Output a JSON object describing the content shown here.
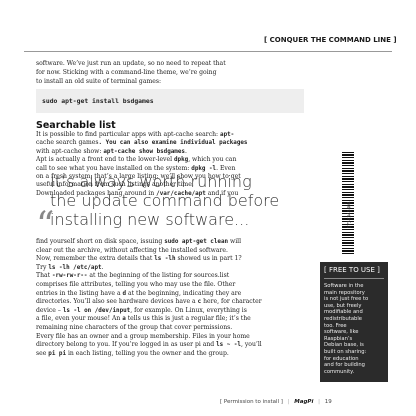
{
  "header": {
    "section": "[ CONQUER THE COMMAND LINE ]"
  },
  "intro": {
    "lines": [
      "software. We’ve just run an update, so no need to repeat that",
      "for now. Sticking with a command-line theme, we’re going",
      "to install an old suite of terminal games:"
    ]
  },
  "code": "sudo apt-get install bsdgames",
  "section": {
    "heading": "Searchable list",
    "lines": [
      [
        "It is possible to find particular apps with apt-cache search: ",
        "apt-"
      ],
      [
        "cache search games",
        ". You can also examine individual packages"
      ],
      [
        "with apt-cache show: ",
        "apt-cache show bsdgames",
        "."
      ],
      [
        "   Apt is actually a front end to the lower-level ",
        "dpkg",
        ", which you can"
      ],
      [
        "call to see what you have installed on the system: ",
        "dpkg -l",
        ". Even"
      ],
      [
        "on a fresh system, that’s a large listing: we’ll show you how to get"
      ],
      [
        "useful information from such listings another time."
      ],
      [
        "   Downloaded packages hang around in ",
        "/var/cache/apt",
        " and if you"
      ]
    ]
  },
  "pull_quote": {
    "lines": [
      "It’s always worth running",
      "the update command before",
      "installing new software..."
    ]
  },
  "body": {
    "lines": [
      [
        "find yourself short on disk space, issuing ",
        "sudo apt-get clean",
        " will"
      ],
      [
        "clear out the archive, without affecting the installed software."
      ],
      [
        "   Now, remember the extra details that ",
        "ls -lh",
        " showed us in part 1?"
      ],
      [
        "Try ",
        "ls -lh /etc/apt",
        "."
      ],
      [
        "   That ",
        "-rw-rw-r--",
        " at the beginning of the listing for sources.list"
      ],
      [
        "comprises file attributes, telling you who may use the file. Other"
      ],
      [
        "entries in the listing have a ",
        "d",
        " at the beginning, indicating they are"
      ],
      [
        "directories. You’ll also see hardware devices have a ",
        "c",
        " here, for character"
      ],
      [
        "device – ",
        "ls -l on /dev/input",
        ", for example. On Linux, everything is"
      ],
      [
        "a file, even your mouse! An ",
        "a",
        " tells us this is just a regular file; it’s the"
      ],
      [
        "remaining nine characters of the group that cover permissions."
      ],
      [
        "   Every file has an owner and a group membership. Files in your home"
      ],
      [
        "directory belong to you. If you’re logged in as user pi and ",
        "ls ~ -l",
        ", you’ll"
      ],
      [
        "see ",
        "pi pi",
        " in each listing, telling you the owner and the group."
      ]
    ]
  },
  "sidebar": {
    "title": "[ FREE TO USE ]",
    "lines": [
      "Software in the",
      "main repository",
      "is not just free to",
      "use, but freely",
      "modifiable and",
      "redistributable",
      "too. Free",
      "software, like",
      "Raspbian’s",
      "Debian base, is",
      "built on sharing:",
      "for education",
      "and for building",
      "community."
    ]
  },
  "barcode_text": "1734349404",
  "footer": {
    "section": "[ Permission to install ]",
    "magazine": "MagPi",
    "page": "19"
  },
  "colors": {
    "sidebar_bg": "#2b2b2b",
    "code_bg": "#eeeeee",
    "text": "#222222"
  }
}
